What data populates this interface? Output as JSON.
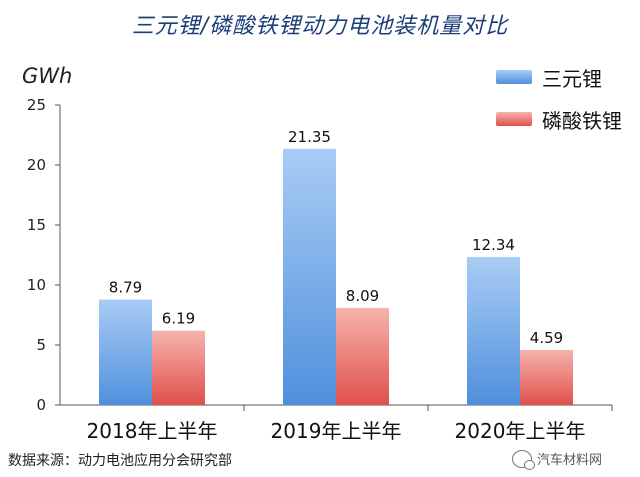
{
  "chart_data": {
    "type": "bar",
    "title": "三元锂/磷酸铁锂动力电池装机量对比",
    "ylabel": "GWh",
    "categories": [
      "2018年上半年",
      "2019年上半年",
      "2020年上半年"
    ],
    "series": [
      {
        "name": "三元锂",
        "values": [
          8.79,
          21.35,
          12.34
        ],
        "color_top": "#a9ccf5",
        "color_bottom": "#4f90dc"
      },
      {
        "name": "磷酸铁锂",
        "values": [
          6.19,
          8.09,
          4.59
        ],
        "color_top": "#f6b3ad",
        "color_bottom": "#e0504a"
      }
    ],
    "ylim": [
      0,
      25
    ],
    "yticks": [
      "0",
      "5",
      "10",
      "15",
      "20",
      "25"
    ],
    "data_labels": [
      [
        "8.79",
        "21.35",
        "12.34"
      ],
      [
        "6.19",
        "8.09",
        "4.59"
      ]
    ],
    "grid": false,
    "legend_position": "top-right"
  },
  "footer": {
    "source": "数据来源：动力电池应用分会研究部",
    "watermark": "汽车材料网"
  }
}
